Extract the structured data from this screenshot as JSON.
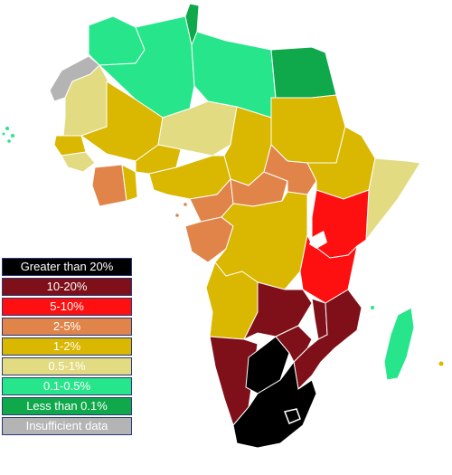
{
  "map": {
    "colors": {
      "greater_than_20": "#000000",
      "p10_20": "#7f0f18",
      "p5_10": "#ff1010",
      "p2_5": "#e0844a",
      "p1_2": "#dab700",
      "p05_1": "#e3db82",
      "p01_05": "#27e58b",
      "lt_01": "#0fa84a",
      "no_data": "#b4b4b4",
      "border": "#ffffff",
      "lake": "#ffffff"
    }
  },
  "legend": {
    "items": [
      {
        "label": "Greater than 20%",
        "color": "#000000",
        "text_color": "#ffffff"
      },
      {
        "label": "10-20%",
        "color": "#7f0f18",
        "text_color": "#ffffff"
      },
      {
        "label": "5-10%",
        "color": "#ff1010",
        "text_color": "#ffffff"
      },
      {
        "label": "2-5%",
        "color": "#e0844a",
        "text_color": "#ffffff"
      },
      {
        "label": "1-2%",
        "color": "#dab700",
        "text_color": "#ffffff"
      },
      {
        "label": "0.5-1%",
        "color": "#e3db82",
        "text_color": "#ffffff"
      },
      {
        "label": "0.1-0.5%",
        "color": "#27e58b",
        "text_color": "#ffffff"
      },
      {
        "label": "Less than 0.1%",
        "color": "#0fa84a",
        "text_color": "#ffffff"
      },
      {
        "label": "Insufficient data",
        "color": "#b4b4b4",
        "text_color": "#ffffff"
      }
    ]
  }
}
